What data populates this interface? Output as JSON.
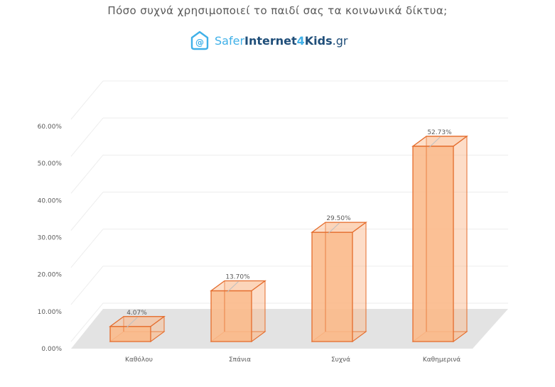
{
  "chart_data": {
    "type": "bar",
    "title": "Πόσο συχνά χρησιμοποιεί το παιδί σας τα κοινωνικά δίκτυα;",
    "categories": [
      "Καθόλου",
      "Σπάνια",
      "Συχνά",
      "Καθημερινά"
    ],
    "values": [
      4.07,
      13.7,
      29.5,
      52.73
    ],
    "data_labels": [
      "4.07%",
      "13.70%",
      "29.50%",
      "52.73%"
    ],
    "y_ticks": [
      "0.00%",
      "10.00%",
      "20.00%",
      "30.00%",
      "40.00%",
      "50.00%",
      "60.00%"
    ],
    "ylim": [
      0,
      60
    ],
    "xlabel": "",
    "ylabel": "",
    "grid": true,
    "legend": "none",
    "bar_color": "#FBB98A",
    "bar_edge_color": "#E46C2C"
  },
  "logo": {
    "parts": [
      "Safer",
      "Internet",
      "4",
      "Kids",
      ".gr"
    ],
    "icon": "chat-bubble-at-icon"
  }
}
